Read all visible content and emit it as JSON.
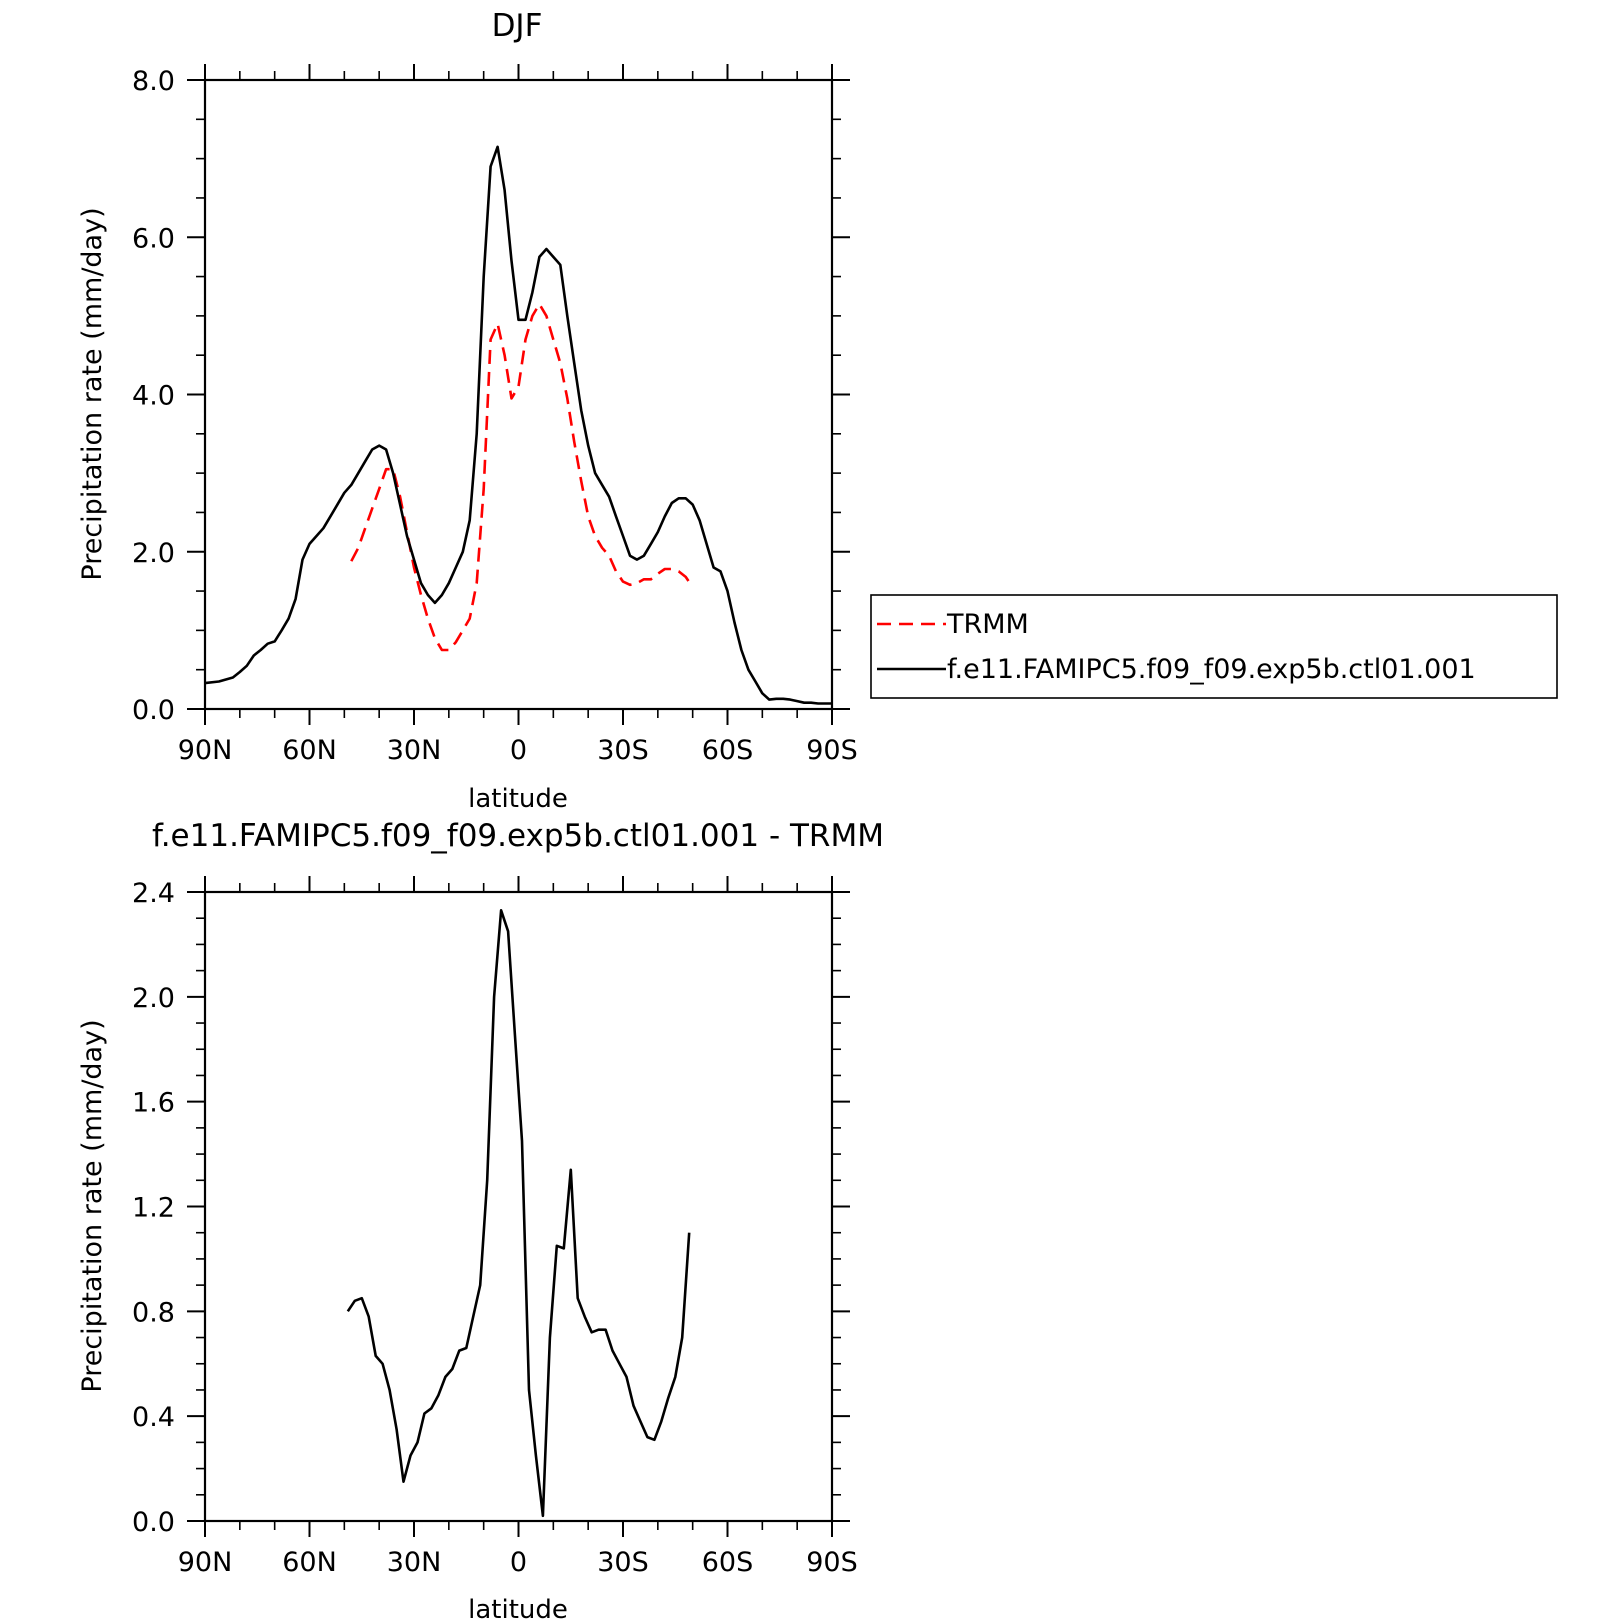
{
  "chart_data": [
    {
      "type": "line",
      "title": "DJF",
      "xlabel": "latitude",
      "ylabel": "Precipitation rate (mm/day)",
      "xlim": [
        90,
        -90
      ],
      "ylim": [
        0,
        8
      ],
      "x_ticks": [
        {
          "value": 90,
          "label": "90N"
        },
        {
          "value": 60,
          "label": "60N"
        },
        {
          "value": 30,
          "label": "30N"
        },
        {
          "value": 0,
          "label": "0"
        },
        {
          "value": -30,
          "label": "30S"
        },
        {
          "value": -60,
          "label": "60S"
        },
        {
          "value": -90,
          "label": "90S"
        }
      ],
      "y_ticks": [
        {
          "value": 0,
          "label": "0.0"
        },
        {
          "value": 2,
          "label": "2.0"
        },
        {
          "value": 4,
          "label": "4.0"
        },
        {
          "value": 6,
          "label": "6.0"
        },
        {
          "value": 8,
          "label": "8.0"
        }
      ],
      "grid": false,
      "legend_position": "right",
      "series": [
        {
          "name": "TRMM",
          "color": "#ff0000",
          "dashed": true,
          "x": [
            48,
            46,
            44,
            42,
            40,
            38,
            36,
            34,
            32,
            30,
            28,
            26,
            24,
            22,
            20,
            18,
            16,
            14,
            12,
            10,
            8,
            6,
            4,
            2,
            0,
            -2,
            -4,
            -6,
            -8,
            -10,
            -12,
            -14,
            -16,
            -18,
            -20,
            -22,
            -24,
            -26,
            -28,
            -30,
            -32,
            -34,
            -36,
            -38,
            -40,
            -42,
            -44,
            -46,
            -48,
            -50
          ],
          "y": [
            1.88,
            2.05,
            2.3,
            2.55,
            2.8,
            3.05,
            3.05,
            2.7,
            2.25,
            1.8,
            1.45,
            1.15,
            0.9,
            0.75,
            0.75,
            0.85,
            1.0,
            1.15,
            1.6,
            2.8,
            4.7,
            4.9,
            4.5,
            3.95,
            4.1,
            4.7,
            5.0,
            5.15,
            5.0,
            4.7,
            4.4,
            3.95,
            3.4,
            2.9,
            2.45,
            2.2,
            2.05,
            1.95,
            1.75,
            1.62,
            1.58,
            1.6,
            1.65,
            1.65,
            1.72,
            1.78,
            1.78,
            1.75,
            1.68,
            1.55
          ]
        },
        {
          "name": "f.e11.FAMIPC5.f09_f09.exp5b.ctl01.001",
          "color": "#000000",
          "dashed": false,
          "x": [
            90,
            86,
            82,
            80,
            78,
            76,
            74,
            72,
            70,
            68,
            66,
            64,
            62,
            60,
            58,
            56,
            54,
            52,
            50,
            48,
            46,
            44,
            42,
            40,
            38,
            36,
            34,
            32,
            30,
            28,
            26,
            24,
            22,
            20,
            18,
            16,
            14,
            12,
            10,
            8,
            6,
            4,
            2,
            0,
            -2,
            -4,
            -6,
            -8,
            -10,
            -12,
            -14,
            -16,
            -18,
            -20,
            -22,
            -24,
            -26,
            -28,
            -30,
            -32,
            -34,
            -36,
            -38,
            -40,
            -42,
            -44,
            -46,
            -48,
            -50,
            -52,
            -54,
            -56,
            -58,
            -60,
            -62,
            -64,
            -66,
            -68,
            -70,
            -72,
            -74,
            -76,
            -78,
            -80,
            -82,
            -84,
            -86,
            -88,
            -90
          ],
          "y": [
            0.33,
            0.35,
            0.4,
            0.47,
            0.55,
            0.68,
            0.75,
            0.83,
            0.86,
            1.0,
            1.15,
            1.4,
            1.9,
            2.1,
            2.2,
            2.3,
            2.45,
            2.6,
            2.75,
            2.85,
            3.0,
            3.15,
            3.3,
            3.35,
            3.3,
            3.0,
            2.6,
            2.2,
            1.9,
            1.6,
            1.45,
            1.35,
            1.45,
            1.6,
            1.8,
            2.0,
            2.4,
            3.5,
            5.5,
            6.9,
            7.15,
            6.6,
            5.7,
            4.95,
            4.95,
            5.3,
            5.75,
            5.85,
            5.75,
            5.65,
            5.0,
            4.4,
            3.8,
            3.35,
            3.0,
            2.85,
            2.7,
            2.45,
            2.2,
            1.95,
            1.9,
            1.95,
            2.1,
            2.25,
            2.45,
            2.62,
            2.68,
            2.68,
            2.6,
            2.4,
            2.1,
            1.8,
            1.75,
            1.5,
            1.1,
            0.75,
            0.5,
            0.35,
            0.2,
            0.12,
            0.13,
            0.13,
            0.12,
            0.1,
            0.08,
            0.08,
            0.07,
            0.07,
            0.07
          ]
        }
      ]
    },
    {
      "type": "line",
      "title": "f.e11.FAMIPC5.f09_f09.exp5b.ctl01.001 - TRMM",
      "xlabel": "latitude",
      "ylabel": "Precipitation rate (mm/day)",
      "xlim": [
        90,
        -90
      ],
      "ylim": [
        0,
        2.4
      ],
      "x_ticks": [
        {
          "value": 90,
          "label": "90N"
        },
        {
          "value": 60,
          "label": "60N"
        },
        {
          "value": 30,
          "label": "30N"
        },
        {
          "value": 0,
          "label": "0"
        },
        {
          "value": -30,
          "label": "30S"
        },
        {
          "value": -60,
          "label": "60S"
        },
        {
          "value": -90,
          "label": "90S"
        }
      ],
      "y_ticks": [
        {
          "value": 0,
          "label": "0.0"
        },
        {
          "value": 0.4,
          "label": "0.4"
        },
        {
          "value": 0.8,
          "label": "0.8"
        },
        {
          "value": 1.2,
          "label": "1.2"
        },
        {
          "value": 1.6,
          "label": "1.6"
        },
        {
          "value": 2.0,
          "label": "2.0"
        },
        {
          "value": 2.4,
          "label": "2.4"
        }
      ],
      "grid": false,
      "series": [
        {
          "color": "#000000",
          "dashed": false,
          "x": [
            49,
            47,
            45,
            43,
            41,
            39,
            37,
            35,
            33,
            31,
            29,
            27,
            25,
            23,
            21,
            19,
            17,
            15,
            13,
            11,
            9,
            7,
            5,
            3,
            1,
            -1,
            -3,
            -5,
            -7,
            -9,
            -11,
            -13,
            -15,
            -17,
            -19,
            -21,
            -23,
            -25,
            -27,
            -29,
            -31,
            -33,
            -35,
            -37,
            -39,
            -41,
            -43,
            -45,
            -47,
            -49
          ],
          "y": [
            0.8,
            0.84,
            0.85,
            0.78,
            0.63,
            0.6,
            0.5,
            0.35,
            0.15,
            0.25,
            0.3,
            0.41,
            0.43,
            0.48,
            0.55,
            0.58,
            0.65,
            0.66,
            0.78,
            0.9,
            1.3,
            2.0,
            2.33,
            2.25,
            1.85,
            1.45,
            0.5,
            0.25,
            0.02,
            0.7,
            1.05,
            1.04,
            1.34,
            0.85,
            0.78,
            0.72,
            0.73,
            0.73,
            0.65,
            0.6,
            0.55,
            0.44,
            0.38,
            0.32,
            0.31,
            0.38,
            0.47,
            0.55,
            0.7,
            1.1
          ]
        }
      ]
    }
  ]
}
